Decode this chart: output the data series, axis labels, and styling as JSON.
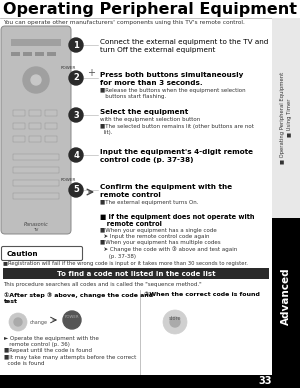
{
  "title": "Operating Peripheral Equipment",
  "subtitle": "You can operate other manufacturers' components using this TV's remote control.",
  "page_number": "33",
  "bg_color": "#ffffff",
  "title_color": "#000000",
  "sidebar_text_top": "■ Operating Peripheral Equipment\n■ Using Timer",
  "sidebar_text_bottom": "Advanced",
  "steps": [
    {
      "num": "1",
      "bold": false,
      "text": "Connect the external equipment to the TV and\nturn Off the external equipment"
    },
    {
      "num": "2",
      "bold": true,
      "text": "Press both buttons simultaneously\nfor more than 3 seconds.",
      "subtext": "■Release the buttons when the equipment selection\n   buttons start flashing."
    },
    {
      "num": "3",
      "bold": true,
      "text": "Select the equipment",
      "subtext": "with the equipment selection button\n■The selected button remains lit (other buttons are not\n  lit)."
    },
    {
      "num": "4",
      "bold": true,
      "text": "Input the equipment's 4-digit remote\ncontrol code (p. 37-38)"
    },
    {
      "num": "5",
      "bold": true,
      "text": "Confirm the equipment with the\nremote control",
      "subtext": "■The external equipment turns On."
    }
  ],
  "if_not_operate_bold": "■ If the equipment does not operate with\n   remote control",
  "if_not_operate_details": "■When your equipment has a single code\n  ➤ Input the remote control code again\n■When your equipment has multiple codes\n  ➤ Change the code with ③ above and test again\n     (p. 37-38)",
  "caution_title": "Caution",
  "caution_text": "■Registration will fail if the wrong code is input or it takes more than 30 seconds to register.",
  "find_code_bar_text": "To find a code not listed in the code list",
  "find_code_bar_color": "#2a2a2a",
  "find_code_bar_text_color": "#ffffff",
  "sequence_text": "This procedure searches all codes and is called the \"sequence method.\"",
  "col1_title": "①After step ③ above, change the code and\ntest",
  "col2_title": "②When the correct code is found",
  "col1_details": "► Operate the equipment with the\n   remote control (p. 36)\n■Repeat until the code is found\n■It may take many attempts before the correct\n  code is found",
  "bottom_bar_color": "#000000",
  "bottom_bar_text_color": "#ffffff",
  "sidebar_top_color": "#e8e8e8",
  "sidebar_bot_color": "#000000",
  "sidebar_top_text_color": "#333333",
  "sidebar_bot_text_color": "#ffffff"
}
